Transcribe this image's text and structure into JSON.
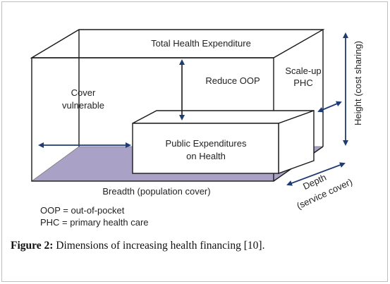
{
  "diagram": {
    "labels": {
      "top": "Total Health Expenditure",
      "left_line1": "Cover",
      "left_line2": "vulnerable",
      "reduce": "Reduce OOP",
      "scale_line1": "Scale-up",
      "scale_line2": "PHC",
      "inner_line1": "Public Expenditures",
      "inner_line2": "on Health",
      "breadth": "Breadth (population cover)",
      "depth_line1": "Depth",
      "depth_line2": "(service cover)",
      "height": "Height (cost sharing)"
    },
    "legend": [
      "OOP = out-of-pocket",
      "PHC = primary health care"
    ],
    "colors": {
      "floor": "#aaa2c6",
      "line": "#1a1a1a",
      "arrow": "#1f3b73",
      "box_fill": "#ffffff"
    }
  },
  "caption": {
    "label": "Figure 2:",
    "text": " Dimensions of increasing health financing [10]."
  }
}
